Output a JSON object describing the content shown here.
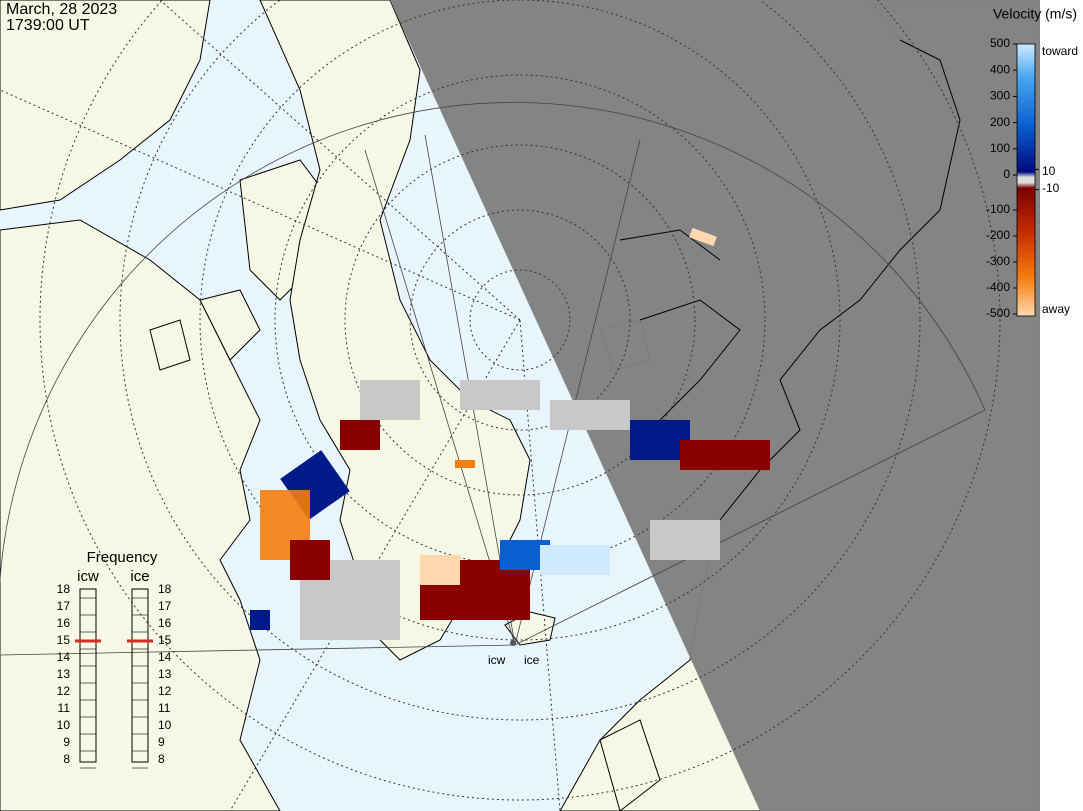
{
  "header": {
    "date": "March, 28 2023",
    "time": "1739:00 UT"
  },
  "velocity_scale": {
    "title": "Velocity (m/s)",
    "ticks": [
      500,
      400,
      300,
      200,
      100,
      0,
      -100,
      -200,
      -300,
      -400,
      -500
    ],
    "inner_ticks": [
      10,
      -10
    ],
    "top_label": "toward",
    "bottom_label": "away"
  },
  "frequency": {
    "title": "Frequency",
    "stations": [
      {
        "name": "icw",
        "ticks": [
          18,
          17,
          16,
          15,
          14,
          13,
          12,
          11,
          10,
          9,
          8
        ],
        "selected": 15
      },
      {
        "name": "ice",
        "ticks": [
          18,
          17,
          16,
          15,
          14,
          13,
          12,
          11,
          10,
          9,
          8
        ],
        "selected": 15
      }
    ]
  },
  "sites": [
    "icw",
    "ice"
  ]
}
